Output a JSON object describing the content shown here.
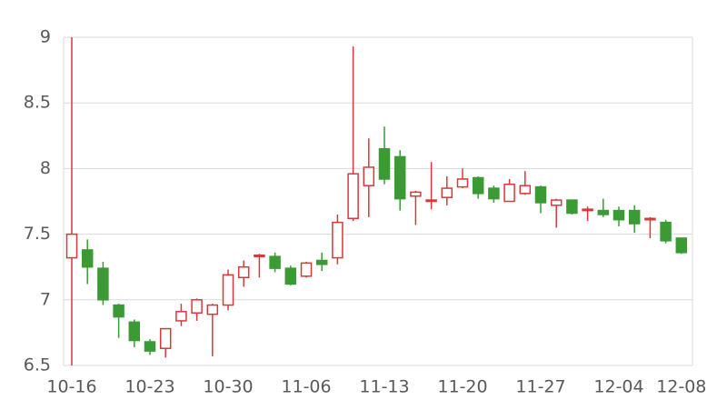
{
  "chart_data": {
    "type": "candlestick",
    "categories": [
      "10-16",
      null,
      null,
      null,
      null,
      "10-23",
      null,
      null,
      null,
      null,
      "10-30",
      null,
      null,
      null,
      null,
      "11-06",
      null,
      null,
      null,
      null,
      "11-13",
      null,
      null,
      null,
      null,
      "11-20",
      null,
      null,
      null,
      null,
      "11-27",
      null,
      null,
      null,
      null,
      "12-04",
      null,
      null,
      null,
      "12-08"
    ],
    "open": [
      7.32,
      7.38,
      7.24,
      6.96,
      6.83,
      6.68,
      6.63,
      6.84,
      6.9,
      6.89,
      6.96,
      7.17,
      7.33,
      7.33,
      7.24,
      7.18,
      7.3,
      7.32,
      7.62,
      7.87,
      8.15,
      8.09,
      7.79,
      7.75,
      7.78,
      7.86,
      7.93,
      7.85,
      7.75,
      7.81,
      7.86,
      7.72,
      7.76,
      7.68,
      7.68,
      7.68,
      7.68,
      7.61,
      7.59,
      7.47
    ],
    "high": [
      9.0,
      7.46,
      7.29,
      6.97,
      6.85,
      6.7,
      6.78,
      6.97,
      7.01,
      6.97,
      7.23,
      7.3,
      7.35,
      7.36,
      7.26,
      7.29,
      7.36,
      7.65,
      8.93,
      8.23,
      8.32,
      8.14,
      7.83,
      8.05,
      7.94,
      8.0,
      7.94,
      7.87,
      7.92,
      7.98,
      7.87,
      7.77,
      7.76,
      7.71,
      7.77,
      7.71,
      7.72,
      7.63,
      7.61,
      7.47
    ],
    "low": [
      6.5,
      7.12,
      6.96,
      6.71,
      6.64,
      6.58,
      6.56,
      6.8,
      6.84,
      6.57,
      6.92,
      7.1,
      7.17,
      7.21,
      7.11,
      7.17,
      7.22,
      7.27,
      7.6,
      7.63,
      7.88,
      7.68,
      7.57,
      7.69,
      7.72,
      7.85,
      7.77,
      7.74,
      7.75,
      7.8,
      7.66,
      7.55,
      7.65,
      7.6,
      7.63,
      7.56,
      7.51,
      7.47,
      7.43,
      7.35
    ],
    "close": [
      7.5,
      7.25,
      7.0,
      6.87,
      6.69,
      6.61,
      6.78,
      6.91,
      7.0,
      6.96,
      7.19,
      7.25,
      7.34,
      7.24,
      7.12,
      7.28,
      7.27,
      7.59,
      7.96,
      8.01,
      7.92,
      7.77,
      7.82,
      7.76,
      7.85,
      7.92,
      7.81,
      7.77,
      7.88,
      7.87,
      7.74,
      7.76,
      7.66,
      7.69,
      7.65,
      7.61,
      7.58,
      7.62,
      7.45,
      7.36
    ],
    "up_color": "#d9383a",
    "down_color": "#3a9b35",
    "ylim": [
      6.5,
      9
    ],
    "yticks": [
      6.5,
      7,
      7.5,
      8,
      8.5,
      9
    ],
    "grid": true
  }
}
